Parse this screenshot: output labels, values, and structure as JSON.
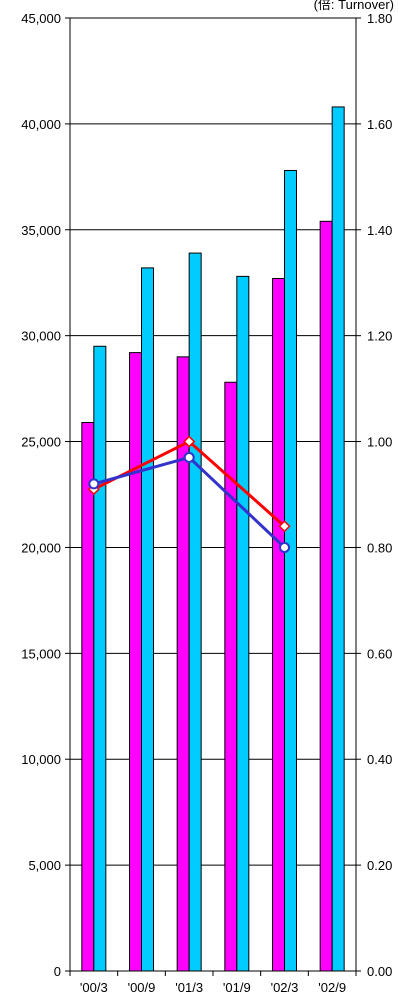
{
  "top_note": "(倍: Turnover)",
  "chart_data": {
    "type": "bar",
    "categories": [
      "'00/3",
      "'00/9",
      "'01/3",
      "'01/9",
      "'02/3",
      "'02/9"
    ],
    "left_axis": {
      "ylim": [
        0,
        45000
      ],
      "ticks": [
        "0",
        "5,000",
        "10,000",
        "15,000",
        "20,000",
        "25,000",
        "30,000",
        "35,000",
        "40,000",
        "45,000"
      ]
    },
    "right_axis": {
      "ylim": [
        0,
        1.8
      ],
      "ticks": [
        "0.00",
        "0.20",
        "0.40",
        "0.60",
        "0.80",
        "1.00",
        "1.20",
        "1.40",
        "1.60",
        "1.80"
      ]
    },
    "series": [
      {
        "kind": "bar",
        "axis": "left",
        "color": "#ff00ff",
        "values": [
          25900,
          29200,
          29000,
          27800,
          32700,
          35400
        ]
      },
      {
        "kind": "bar",
        "axis": "left",
        "color": "#00ccff",
        "values": [
          29500,
          33200,
          33900,
          32800,
          37800,
          40800
        ]
      },
      {
        "kind": "line",
        "axis": "right",
        "color": "#ff0000",
        "marker": "diamond",
        "values": [
          0.91,
          null,
          1.0,
          null,
          0.84,
          null
        ]
      },
      {
        "kind": "line",
        "axis": "right",
        "color": "#3333cc",
        "marker": "circle",
        "values": [
          0.92,
          null,
          0.97,
          null,
          0.8,
          null
        ]
      }
    ],
    "grid": true,
    "legend": "none"
  }
}
